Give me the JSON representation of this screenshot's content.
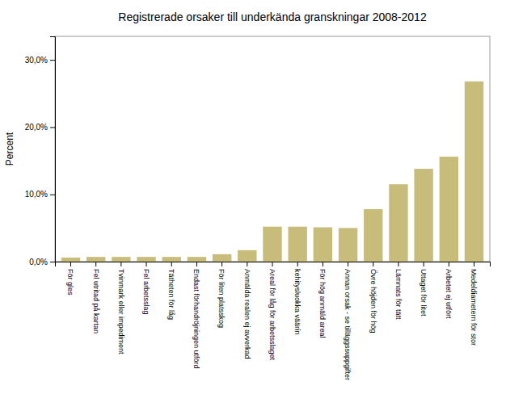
{
  "chart_data": {
    "type": "bar",
    "title": "Registrerade orsaker till underkända granskningar 2008-2012",
    "ylabel": "Percent",
    "categories": [
      "För gles",
      "Fel utritad på kartan",
      "Tvinmark eller impediment",
      "Fel arbetsslag",
      "Tätheten för låg",
      "Endast förhandröjningen utförd",
      "För liten platsskog",
      "Anmälda realen ej avverkad",
      "Areal för låg för arbetsslaget",
      "kehitysluokka väärín",
      "För hög anmäld areal",
      "Annan orsak - se tilläggssuppgifter",
      "Övre höjden för hög",
      "Lämnats för tätt",
      "Uttaget för litet",
      "Arbetet ej utfört",
      "Medeldiametern för stor"
    ],
    "values": [
      0.6,
      0.7,
      0.7,
      0.7,
      0.7,
      0.7,
      1.1,
      1.7,
      5.2,
      5.2,
      5.1,
      5.0,
      7.8,
      11.5,
      13.8,
      15.6,
      26.8
    ],
    "color": "#c8bc7a",
    "ylim": [
      0,
      33.5
    ],
    "yticks": [
      {
        "value": 0,
        "label": "0,0%"
      },
      {
        "value": 10,
        "label": "10,0%"
      },
      {
        "value": 20,
        "label": "20,0%"
      },
      {
        "value": 30,
        "label": "30,0%"
      }
    ],
    "grid": false
  }
}
